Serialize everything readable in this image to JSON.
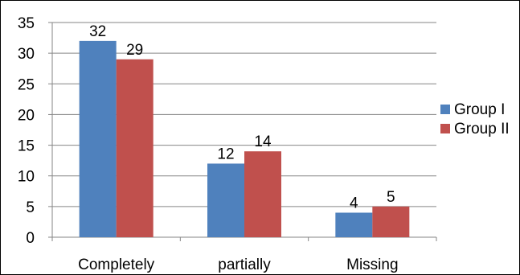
{
  "chart_data": {
    "type": "bar",
    "title": "",
    "xlabel": "",
    "ylabel": "",
    "categories": [
      "Completely",
      "partially",
      "Missing"
    ],
    "series": [
      {
        "name": "Group I",
        "values": [
          32,
          12,
          4
        ],
        "color": "#4F81BD"
      },
      {
        "name": "Group II",
        "values": [
          29,
          14,
          5
        ],
        "color": "#C0504D"
      }
    ],
    "ylim": [
      0,
      35
    ],
    "yticks": [
      0,
      5,
      10,
      15,
      20,
      25,
      30,
      35
    ],
    "grid": true,
    "legend_position": "right",
    "data_labels": true
  },
  "colors": {
    "grid": "#868686",
    "axis": "#868686",
    "text": "#000000"
  }
}
